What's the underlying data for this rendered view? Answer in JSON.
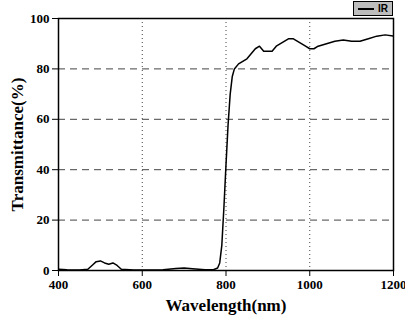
{
  "chart_data": {
    "type": "line",
    "x_label": "Wavelength(nm)",
    "y_label": "Transmittance(%)",
    "x": [
      400,
      420,
      450,
      470,
      480,
      490,
      500,
      510,
      520,
      530,
      540,
      550,
      580,
      600,
      650,
      680,
      700,
      720,
      750,
      770,
      780,
      785,
      790,
      795,
      800,
      805,
      810,
      815,
      820,
      830,
      840,
      850,
      860,
      870,
      880,
      890,
      900,
      910,
      920,
      930,
      940,
      950,
      960,
      970,
      980,
      990,
      1000,
      1010,
      1020,
      1040,
      1060,
      1080,
      1100,
      1120,
      1140,
      1160,
      1180,
      1200
    ],
    "series": [
      {
        "name": "IR",
        "color": "#000000",
        "values": [
          0.5,
          0.3,
          0.2,
          0.5,
          2,
          3.5,
          3.8,
          3,
          2.5,
          3,
          2,
          0.5,
          0.2,
          0.2,
          0.3,
          0.8,
          1,
          0.7,
          0.3,
          0.3,
          1,
          3,
          10,
          25,
          42,
          58,
          70,
          77,
          80,
          82,
          83,
          84,
          86,
          88,
          89,
          87,
          87,
          87,
          89,
          90,
          91,
          92,
          92,
          91,
          90,
          89,
          88,
          88,
          89,
          90,
          91,
          91.5,
          91,
          91,
          92,
          93,
          93.5,
          93
        ]
      }
    ],
    "xlim": [
      400,
      1200
    ],
    "xticks": [
      400,
      600,
      800,
      1000,
      1200
    ],
    "ylim": [
      0,
      100
    ],
    "yticks": [
      0,
      20,
      40,
      60,
      80,
      100
    ],
    "grid": true,
    "legend": "top-right"
  }
}
